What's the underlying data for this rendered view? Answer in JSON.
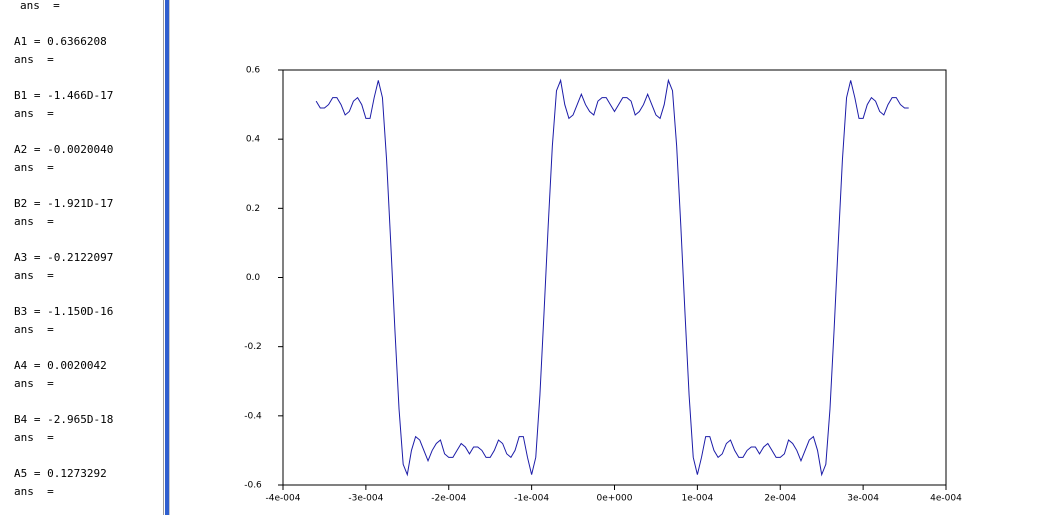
{
  "console": {
    "lines": [
      "ans  =",
      "A1 = 0.6366208",
      "ans  =",
      "B1 = -1.466D-17",
      "ans  =",
      "A2 = -0.0020040",
      "ans  =",
      "B2 = -1.921D-17",
      "ans  =",
      "A3 = -0.2122097",
      "ans  =",
      "B3 = -1.150D-16",
      "ans  =",
      "A4 = 0.0020042",
      "ans  =",
      "B4 = -2.965D-18",
      "ans  =",
      "A5 = 0.1273292",
      "ans  ="
    ]
  },
  "chart_data": {
    "type": "line",
    "x": [
      -0.00036,
      -0.000355,
      -0.00035,
      -0.000345,
      -0.00034,
      -0.000335,
      -0.00033,
      -0.000325,
      -0.00032,
      -0.000315,
      -0.00031,
      -0.000305,
      -0.0003,
      -0.000295,
      -0.00029,
      -0.000285,
      -0.00028,
      -0.000275,
      -0.00027,
      -0.000265,
      -0.00026,
      -0.000255,
      -0.00025,
      -0.000245,
      -0.00024,
      -0.000235,
      -0.00023,
      -0.000225,
      -0.00022,
      -0.000215,
      -0.00021,
      -0.000205,
      -0.0002,
      -0.000195,
      -0.00019,
      -0.000185,
      -0.00018,
      -0.000175,
      -0.00017,
      -0.000165,
      -0.00016,
      -0.000155,
      -0.00015,
      -0.000145,
      -0.00014,
      -0.000135,
      -0.00013,
      -0.000125,
      -0.00012,
      -0.000115,
      -0.00011,
      -0.000105,
      -0.0001,
      -9.5e-05,
      -9e-05,
      -8.5e-05,
      -8e-05,
      -7.5e-05,
      -7e-05,
      -6.5e-05,
      -6e-05,
      -5.5e-05,
      -5e-05,
      -4.5e-05,
      -4e-05,
      -3.5e-05,
      -3e-05,
      -2.5e-05,
      -2e-05,
      -1.5e-05,
      -1e-05,
      -5e-06,
      0,
      5e-06,
      1e-05,
      1.5e-05,
      2e-05,
      2.5e-05,
      3e-05,
      3.5e-05,
      4e-05,
      4.5e-05,
      5e-05,
      5.5e-05,
      6e-05,
      6.5e-05,
      7e-05,
      7.5e-05,
      8e-05,
      8.5e-05,
      9e-05,
      9.5e-05,
      0.0001,
      0.000105,
      0.00011,
      0.000115,
      0.00012,
      0.000125,
      0.00013,
      0.000135,
      0.00014,
      0.000145,
      0.00015,
      0.000155,
      0.00016,
      0.000165,
      0.00017,
      0.000175,
      0.00018,
      0.000185,
      0.00019,
      0.000195,
      0.0002,
      0.000205,
      0.00021,
      0.000215,
      0.00022,
      0.000225,
      0.00023,
      0.000235,
      0.00024,
      0.000245,
      0.00025,
      0.000255,
      0.00026,
      0.000265,
      0.00027,
      0.000275,
      0.00028,
      0.000285,
      0.00029,
      0.000295,
      0.0003,
      0.000305,
      0.00031,
      0.000315,
      0.00032,
      0.000325,
      0.00033,
      0.000335,
      0.00034,
      0.000345,
      0.00035,
      0.000355
    ],
    "series": [
      {
        "color": "#1c1ca8",
        "values": [
          0.51,
          0.49,
          0.49,
          0.5,
          0.52,
          0.52,
          0.5,
          0.47,
          0.48,
          0.51,
          0.52,
          0.5,
          0.46,
          0.46,
          0.52,
          0.57,
          0.52,
          0.34,
          0.1,
          -0.15,
          -0.38,
          -0.54,
          -0.57,
          -0.5,
          -0.46,
          -0.47,
          -0.5,
          -0.53,
          -0.5,
          -0.48,
          -0.47,
          -0.51,
          -0.52,
          -0.52,
          -0.5,
          -0.48,
          -0.49,
          -0.51,
          -0.49,
          -0.49,
          -0.5,
          -0.52,
          -0.52,
          -0.5,
          -0.47,
          -0.48,
          -0.51,
          -0.52,
          -0.5,
          -0.46,
          -0.46,
          -0.52,
          -0.57,
          -0.52,
          -0.34,
          -0.1,
          0.15,
          0.38,
          0.54,
          0.57,
          0.5,
          0.46,
          0.47,
          0.5,
          0.53,
          0.5,
          0.48,
          0.47,
          0.51,
          0.52,
          0.52,
          0.5,
          0.48,
          0.5,
          0.52,
          0.52,
          0.51,
          0.47,
          0.48,
          0.5,
          0.53,
          0.5,
          0.47,
          0.46,
          0.5,
          0.57,
          0.54,
          0.38,
          0.15,
          -0.1,
          -0.34,
          -0.52,
          -0.57,
          -0.52,
          -0.46,
          -0.46,
          -0.5,
          -0.52,
          -0.51,
          -0.48,
          -0.47,
          -0.5,
          -0.52,
          -0.52,
          -0.5,
          -0.49,
          -0.49,
          -0.51,
          -0.49,
          -0.48,
          -0.5,
          -0.52,
          -0.52,
          -0.51,
          -0.47,
          -0.48,
          -0.5,
          -0.53,
          -0.5,
          -0.47,
          -0.46,
          -0.5,
          -0.57,
          -0.54,
          -0.38,
          -0.15,
          0.1,
          0.34,
          0.52,
          0.57,
          0.52,
          0.46,
          0.46,
          0.5,
          0.52,
          0.51,
          0.48,
          0.47,
          0.5,
          0.52,
          0.52,
          0.5,
          0.49,
          0.49
        ]
      }
    ],
    "xlim": [
      -0.0004,
      0.0004
    ],
    "ylim": [
      -0.6,
      0.6
    ],
    "xticks": [
      {
        "value": -0.0004,
        "label": "-4e-004"
      },
      {
        "value": -0.0003,
        "label": "-3e-004"
      },
      {
        "value": -0.0002,
        "label": "-2e-004"
      },
      {
        "value": -0.0001,
        "label": "-1e-004"
      },
      {
        "value": 0,
        "label": "0e+000"
      },
      {
        "value": 0.0001,
        "label": "1e-004"
      },
      {
        "value": 0.0002,
        "label": "2e-004"
      },
      {
        "value": 0.0003,
        "label": "3e-004"
      },
      {
        "value": 0.0004,
        "label": "4e-004"
      }
    ],
    "yticks": [
      -0.6,
      -0.4,
      -0.2,
      {
        "value": 0,
        "label": "0.0"
      },
      0.2,
      0.4,
      0.6
    ],
    "grid": false
  }
}
